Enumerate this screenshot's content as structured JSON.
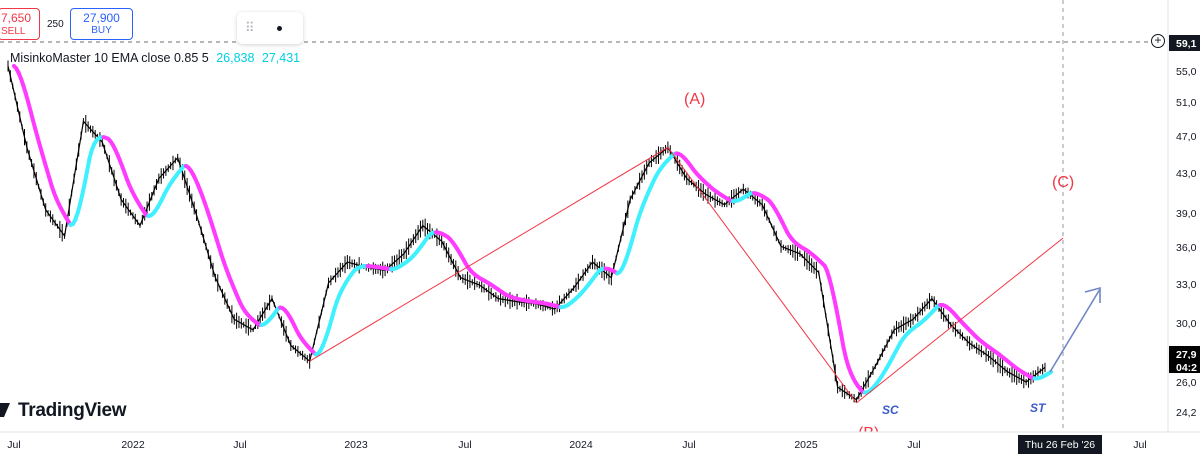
{
  "header": {
    "sell_price": "7,650",
    "sell_label": "SELL",
    "spread": "250",
    "buy_price": "27,900",
    "buy_label": "BUY"
  },
  "legend": {
    "text": "MisinkoMaster 10 EMA close 0.85 5",
    "value1": "26,838",
    "value2": "27,431"
  },
  "logo": "TradingView",
  "time_axis": [
    "Jul",
    "2022",
    "Jul",
    "2023",
    "Jul",
    "2024",
    "Jul",
    "2025",
    "Jul",
    "Thu 26 Feb '26",
    "Jul"
  ],
  "price_axis": [
    "59,1",
    "55,0",
    "51,0",
    "47,0",
    "43,0",
    "39,0",
    "36,0",
    "33,0",
    "30,0",
    "27,9",
    "04:2",
    "26,0",
    "24,2"
  ],
  "annotations": {
    "wave_A": "(A)",
    "wave_B": "(B)",
    "wave_C": "(C)",
    "sc": "SC",
    "st": "ST"
  },
  "colors": {
    "price": "#000000",
    "ema_down": "#ff3bff",
    "ema_up": "#3ff0ff",
    "wave": "#f23645",
    "arrow": "#6f86c7",
    "label_blue": "#3d5ccc"
  },
  "chart_data": {
    "type": "line",
    "title": "",
    "xlabel": "",
    "ylabel": "",
    "ylim": [
      24200,
      59100
    ],
    "x": [
      "2021-07",
      "2021-08",
      "2021-09",
      "2021-10",
      "2021-11",
      "2021-12",
      "2022-01",
      "2022-02",
      "2022-03",
      "2022-04",
      "2022-05",
      "2022-06",
      "2022-07",
      "2022-08",
      "2022-09",
      "2022-10",
      "2022-11",
      "2022-12",
      "2023-01",
      "2023-02",
      "2023-03",
      "2023-04",
      "2023-05",
      "2023-06",
      "2023-07",
      "2023-08",
      "2023-09",
      "2023-10",
      "2023-11",
      "2023-12",
      "2024-01",
      "2024-02",
      "2024-03",
      "2024-04",
      "2024-05",
      "2024-06",
      "2024-07",
      "2024-08",
      "2024-09",
      "2024-10",
      "2024-11",
      "2024-12",
      "2025-01",
      "2025-02",
      "2025-03",
      "2025-04",
      "2025-05",
      "2025-06",
      "2025-07",
      "2025-08",
      "2025-09",
      "2025-10",
      "2025-11",
      "2025-12",
      "2026-01",
      "2026-02"
    ],
    "series": [
      {
        "values": [
          56800,
          49000,
          43000,
          40500,
          51500,
          49500,
          44000,
          41500,
          46000,
          48000,
          42500,
          36500,
          32500,
          31500,
          34500,
          30000,
          28500,
          36000,
          38000,
          37500,
          37200,
          38800,
          41500,
          40000,
          36500,
          35800,
          34500,
          34200,
          34000,
          33500,
          35500,
          38000,
          36500,
          44000,
          47500,
          49000,
          46000,
          44500,
          43500,
          45000,
          43500,
          39500,
          38800,
          37000,
          26000,
          24800,
          28000,
          31500,
          32500,
          34500,
          32000,
          30200,
          29000,
          27500,
          26500,
          27900
        ]
      }
    ],
    "wave_points": [
      {
        "label": "(A)",
        "from": [
          "2022-11",
          28500
        ],
        "to": [
          "2024-06",
          49000
        ]
      },
      {
        "label": "(B)",
        "from": [
          "2024-06",
          49000
        ],
        "to": [
          "2025-04",
          24500
        ]
      },
      {
        "label": "(C)",
        "from": [
          "2025-04",
          24500
        ],
        "to": [
          "2026-02",
          40300
        ]
      }
    ]
  }
}
